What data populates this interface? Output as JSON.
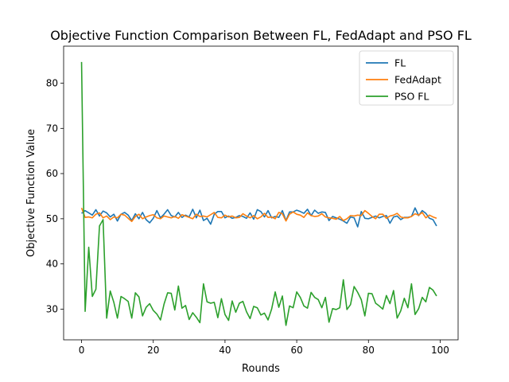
{
  "chart_data": {
    "type": "line",
    "title": "Objective Function Comparison Between FL, FedAdapt and PSO FL",
    "xlabel": "Rounds",
    "ylabel": "Objective Function Value",
    "xlim": [
      -5,
      105
    ],
    "ylim": [
      23.2,
      88.2
    ],
    "xticks": [
      0,
      20,
      40,
      60,
      80,
      100
    ],
    "yticks": [
      30,
      40,
      50,
      60,
      70,
      80
    ],
    "legend_position": "top-right",
    "series": [
      {
        "name": "FL",
        "color": "#1f77b4",
        "x": [
          0,
          1,
          2,
          3,
          4,
          5,
          6,
          7,
          8,
          9,
          10,
          11,
          12,
          13,
          14,
          15,
          16,
          17,
          18,
          19,
          20,
          21,
          22,
          23,
          24,
          25,
          26,
          27,
          28,
          29,
          30,
          31,
          32,
          33,
          34,
          35,
          36,
          37,
          38,
          39,
          40,
          41,
          42,
          43,
          44,
          45,
          46,
          47,
          48,
          49,
          50,
          51,
          52,
          53,
          54,
          55,
          56,
          57,
          58,
          59,
          60,
          61,
          62,
          63,
          64,
          65,
          66,
          67,
          68,
          69,
          70,
          71,
          72,
          73,
          74,
          75,
          76,
          77,
          78,
          79,
          80,
          81,
          82,
          83,
          84,
          85,
          86,
          87,
          88,
          89,
          90,
          91,
          92,
          93,
          94,
          95,
          96,
          97,
          98,
          99
        ],
        "y": [
          51.2,
          51.8,
          51.3,
          50.8,
          52.0,
          50.6,
          51.7,
          51.3,
          50.4,
          51.0,
          49.5,
          51.0,
          51.4,
          50.8,
          49.6,
          51.1,
          50.0,
          51.4,
          49.8,
          49.1,
          50.1,
          51.8,
          50.2,
          51.0,
          52.0,
          50.7,
          50.4,
          51.4,
          50.3,
          50.8,
          50.4,
          52.1,
          50.2,
          51.9,
          49.6,
          50.1,
          48.8,
          51.0,
          51.6,
          51.6,
          50.2,
          50.6,
          50.1,
          50.3,
          50.7,
          50.5,
          50.1,
          51.3,
          49.9,
          52.0,
          51.6,
          50.4,
          51.8,
          50.2,
          50.5,
          50.3,
          51.8,
          49.6,
          51.5,
          51.5,
          51.9,
          51.6,
          51.2,
          52.1,
          50.7,
          51.9,
          51.2,
          51.5,
          51.4,
          49.6,
          50.5,
          50.2,
          49.9,
          49.5,
          49.0,
          50.4,
          50.2,
          48.2,
          51.6,
          50.1,
          50.0,
          50.3,
          50.6,
          50.2,
          50.5,
          50.7,
          49.0,
          50.4,
          50.6,
          49.8,
          50.3,
          50.3,
          50.5,
          52.4,
          50.7,
          51.8,
          51.2,
          50.1,
          49.8,
          48.4
        ]
      },
      {
        "name": "FedAdapt",
        "color": "#ff7f0e",
        "x": [
          0,
          1,
          2,
          3,
          4,
          5,
          6,
          7,
          8,
          9,
          10,
          11,
          12,
          13,
          14,
          15,
          16,
          17,
          18,
          19,
          20,
          21,
          22,
          23,
          24,
          25,
          26,
          27,
          28,
          29,
          30,
          31,
          32,
          33,
          34,
          35,
          36,
          37,
          38,
          39,
          40,
          41,
          42,
          43,
          44,
          45,
          46,
          47,
          48,
          49,
          50,
          51,
          52,
          53,
          54,
          55,
          56,
          57,
          58,
          59,
          60,
          61,
          62,
          63,
          64,
          65,
          66,
          67,
          68,
          69,
          70,
          71,
          72,
          73,
          74,
          75,
          76,
          77,
          78,
          79,
          80,
          81,
          82,
          83,
          84,
          85,
          86,
          87,
          88,
          89,
          90,
          91,
          92,
          93,
          94,
          95,
          96,
          97,
          98,
          99
        ],
        "y": [
          52.4,
          50.3,
          50.4,
          50.2,
          51.0,
          51.3,
          50.2,
          50.6,
          49.8,
          50.4,
          50.2,
          51.0,
          50.8,
          50.1,
          49.4,
          50.5,
          51.0,
          50.0,
          50.4,
          50.7,
          50.9,
          50.2,
          50.0,
          50.6,
          50.4,
          50.2,
          50.5,
          50.1,
          50.9,
          50.6,
          50.3,
          50.0,
          51.0,
          50.5,
          50.6,
          50.4,
          50.9,
          51.4,
          50.3,
          50.2,
          50.8,
          50.4,
          50.6,
          50.2,
          50.3,
          51.1,
          50.6,
          50.2,
          50.7,
          50.0,
          50.4,
          51.2,
          50.3,
          50.4,
          50.0,
          51.4,
          51.1,
          49.5,
          51.0,
          51.5,
          51.0,
          50.8,
          50.3,
          51.3,
          50.7,
          50.5,
          50.6,
          51.1,
          50.4,
          50.2,
          50.1,
          49.9,
          50.5,
          49.6,
          50.0,
          50.7,
          50.6,
          50.8,
          50.7,
          51.8,
          51.2,
          50.5,
          50.0,
          51.0,
          51.0,
          50.1,
          50.6,
          50.8,
          51.2,
          50.4,
          50.2,
          50.2,
          50.5,
          51.1,
          50.8,
          51.4,
          50.2,
          50.8,
          50.4,
          50.1
        ]
      },
      {
        "name": "PSO FL",
        "color": "#2ca02c",
        "x": [
          0,
          1,
          2,
          3,
          4,
          5,
          6,
          7,
          8,
          9,
          10,
          11,
          12,
          13,
          14,
          15,
          16,
          17,
          18,
          19,
          20,
          21,
          22,
          23,
          24,
          25,
          26,
          27,
          28,
          29,
          30,
          31,
          32,
          33,
          34,
          35,
          36,
          37,
          38,
          39,
          40,
          41,
          42,
          43,
          44,
          45,
          46,
          47,
          48,
          49,
          50,
          51,
          52,
          53,
          54,
          55,
          56,
          57,
          58,
          59,
          60,
          61,
          62,
          63,
          64,
          65,
          66,
          67,
          68,
          69,
          70,
          71,
          72,
          73,
          74,
          75,
          76,
          77,
          78,
          79,
          80,
          81,
          82,
          83,
          84,
          85,
          86,
          87,
          88,
          89,
          90,
          91,
          92,
          93,
          94,
          95,
          96,
          97,
          98,
          99
        ],
        "y": [
          84.7,
          29.5,
          43.7,
          32.8,
          34.4,
          48.4,
          49.8,
          28.0,
          34.0,
          31.5,
          28.0,
          32.8,
          32.3,
          31.7,
          28.0,
          33.6,
          32.7,
          28.5,
          30.4,
          31.2,
          29.7,
          28.9,
          27.6,
          31.1,
          33.6,
          33.5,
          29.8,
          35.1,
          30.2,
          30.8,
          27.7,
          29.2,
          28.2,
          27.0,
          35.6,
          31.6,
          31.3,
          31.5,
          28.1,
          32.3,
          28.8,
          27.5,
          31.8,
          29.3,
          31.3,
          31.7,
          29.4,
          27.9,
          30.6,
          30.3,
          28.7,
          29.1,
          27.6,
          30.0,
          33.8,
          30.4,
          32.9,
          26.4,
          30.7,
          30.3,
          33.8,
          32.6,
          30.7,
          30.2,
          33.7,
          32.6,
          32.1,
          30.3,
          32.6,
          27.1,
          30.1,
          29.9,
          30.3,
          36.5,
          29.9,
          31.0,
          35.0,
          33.7,
          32.1,
          28.5,
          33.5,
          33.4,
          31.3,
          30.7,
          30.0,
          33.0,
          31.2,
          34.1,
          28.0,
          29.6,
          32.4,
          30.3,
          35.6,
          28.8,
          30.1,
          32.6,
          31.6,
          34.8,
          34.2,
          32.9
        ]
      }
    ]
  }
}
